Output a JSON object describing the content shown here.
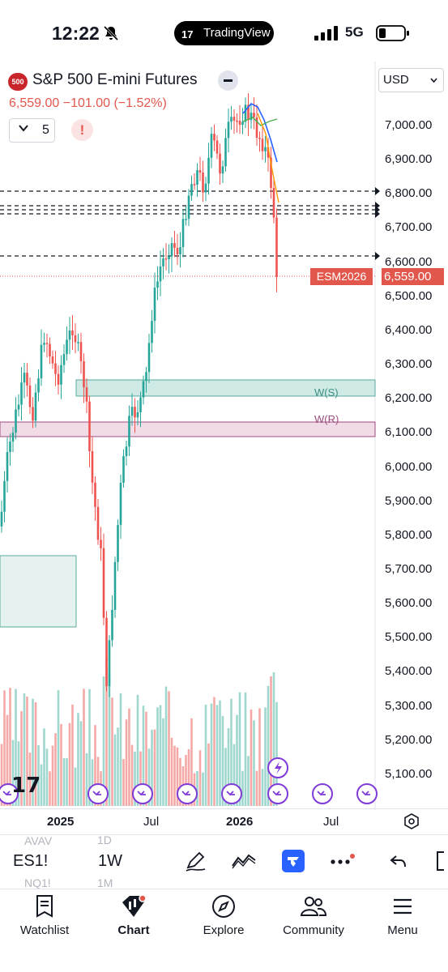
{
  "status_bar": {
    "time": "12:22",
    "app_pill": "TradingView",
    "app_pill_logo": "17",
    "network": "5G"
  },
  "symbol": {
    "badge": "500",
    "name": "S&P 500 E-mini Futures",
    "last": "6,559.00",
    "change": "−101.00",
    "change_pct": "(−1.52%)",
    "interval_count": "5",
    "alert_mark": "!"
  },
  "currency": "USD",
  "price_axis": [
    "7,000.00",
    "6,900.00",
    "6,800.00",
    "6,700.00",
    "6,600.00",
    "6,500.00",
    "6,400.00",
    "6,300.00",
    "6,200.00",
    "6,100.00",
    "6,000.00",
    "5,900.00",
    "5,800.00",
    "5,700.00",
    "5,600.00",
    "5,500.00",
    "5,400.00",
    "5,300.00",
    "5,200.00",
    "5,100.00"
  ],
  "last_price_label": "6,559.00",
  "contract_tag": "ESM2026",
  "zones": {
    "support": "W(S)",
    "resistance": "W(R)"
  },
  "time_axis": [
    "2025",
    "Jul",
    "2026",
    "Jul"
  ],
  "toolbar": {
    "symbol": "ES1!",
    "interval": "1W",
    "ghost_top_symbol": "AVAV",
    "ghost_top_interval": "1D",
    "ghost_bottom_symbol": "NQ1!",
    "ghost_bottom_interval": "1M"
  },
  "nav": [
    {
      "label": "Watchlist",
      "icon": "watchlist-icon"
    },
    {
      "label": "Chart",
      "icon": "chart-icon"
    },
    {
      "label": "Explore",
      "icon": "compass-icon"
    },
    {
      "label": "Community",
      "icon": "community-icon"
    },
    {
      "label": "Menu",
      "icon": "menu-icon"
    }
  ],
  "colors": {
    "up": "#26a69a",
    "down": "#ef5350",
    "last_price": "#e2574c",
    "support_zone": "#cfe9e4",
    "resistance_zone": "#f0dbe6",
    "accent": "#2962ff"
  }
}
